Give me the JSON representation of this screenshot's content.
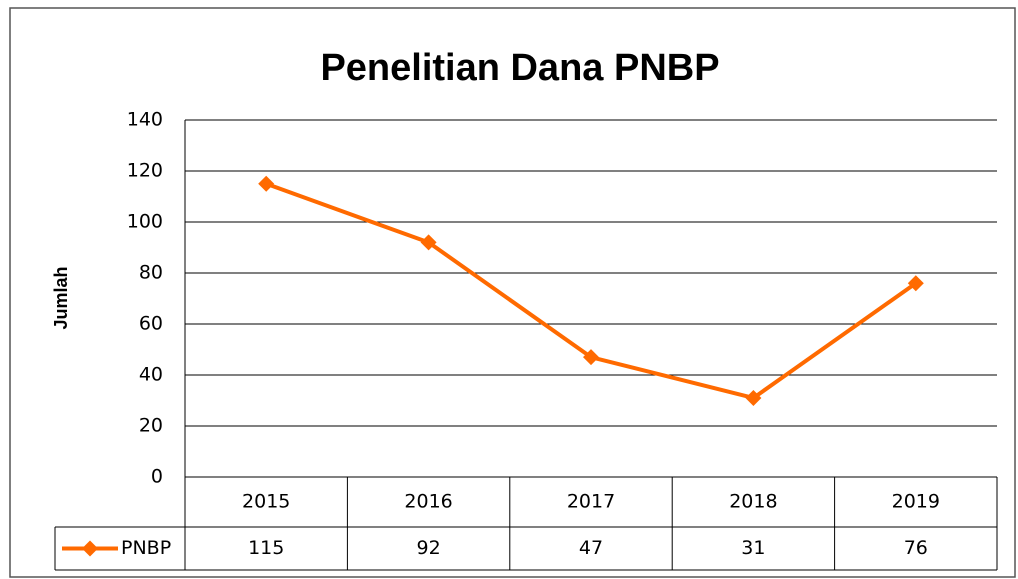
{
  "chart_data": {
    "type": "line",
    "title": "Penelitian Dana PNBP",
    "y_label": "Jumlah",
    "categories": [
      "2015",
      "2016",
      "2017",
      "2018",
      "2019"
    ],
    "series": [
      {
        "name": "PNBP",
        "color": "#ff6a00",
        "values": [
          115,
          92,
          47,
          31,
          76
        ]
      }
    ],
    "ylim": [
      0,
      140
    ],
    "yticks": [
      0,
      20,
      40,
      60,
      80,
      100,
      120,
      140
    ],
    "grid": true,
    "data_table": true
  }
}
